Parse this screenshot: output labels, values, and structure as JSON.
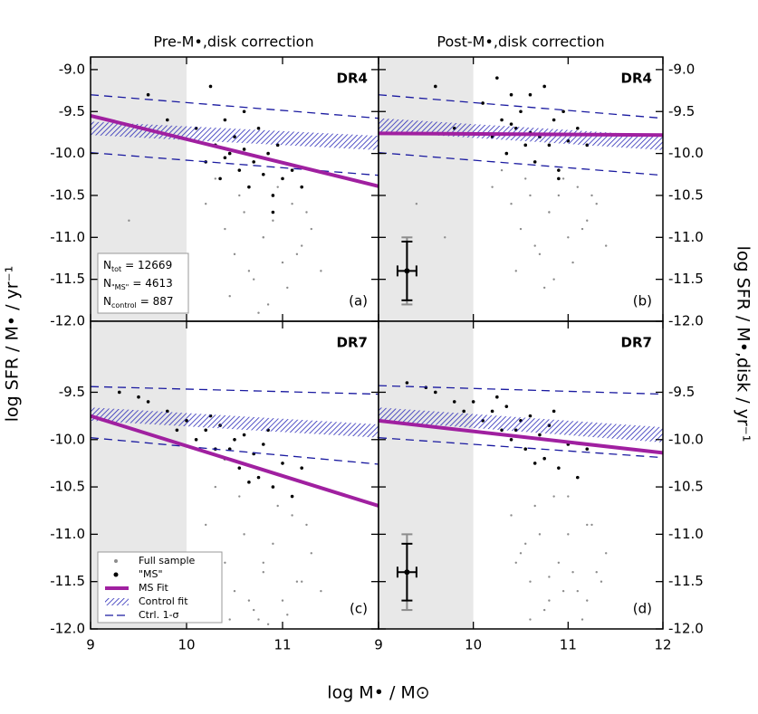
{
  "figure": {
    "column_titles": [
      "Pre-M•,disk correction",
      "Post-M•,disk correction"
    ],
    "x_label": "log M• / M⊙",
    "y_label": "log SFR / M• / yr⁻¹",
    "y2_label": "log SFR / M•,disk / yr⁻¹"
  },
  "chart_data": [
    {
      "type": "scatter",
      "panel_label": "(a)",
      "survey": "DR4",
      "xlim": [
        9,
        12
      ],
      "xticks": [
        9,
        10,
        11
      ],
      "ylim": [
        -12.0,
        -8.85
      ],
      "yticks": [
        {
          "value": -9.0,
          "label": "-9.0"
        },
        {
          "value": -9.5,
          "label": "-9.5"
        },
        {
          "value": -10.0,
          "label": "-10.0"
        },
        {
          "value": -10.5,
          "label": "-10.5"
        },
        {
          "value": -11.0,
          "label": "-11.0"
        },
        {
          "value": -11.5,
          "label": "-11.5"
        },
        {
          "value": -12.0,
          "label": "-12.0"
        }
      ],
      "y_tick_side": "left",
      "excluded_x": [
        9,
        10
      ],
      "series": [
        {
          "color": "#8c8c8c",
          "x": [
            10.2,
            10.4,
            10.5,
            10.6,
            10.7,
            10.8,
            10.9,
            11.0,
            11.1,
            11.2,
            11.3,
            10.45,
            10.65,
            10.85,
            11.05,
            11.25,
            10.55,
            10.75,
            10.95,
            11.15,
            9.4,
            9.7,
            10.3,
            11.4,
            10.8
          ],
          "y": [
            -10.6,
            -10.9,
            -11.2,
            -10.7,
            -11.5,
            -11.0,
            -10.8,
            -11.3,
            -10.6,
            -11.1,
            -10.9,
            -11.7,
            -11.4,
            -11.8,
            -11.6,
            -10.7,
            -10.5,
            -11.9,
            -10.4,
            -11.2,
            -10.8,
            -11.3,
            -10.3,
            -11.4,
            -11.0
          ]
        },
        {
          "color": "#000000",
          "x": [
            10.1,
            10.2,
            10.3,
            10.35,
            10.4,
            10.45,
            10.5,
            10.55,
            10.6,
            10.65,
            10.7,
            10.75,
            10.8,
            10.85,
            10.9,
            10.95,
            11.0,
            11.1,
            9.6,
            9.8,
            10.25,
            10.6,
            10.9,
            11.2,
            10.4
          ],
          "y": [
            -9.7,
            -10.1,
            -9.9,
            -10.3,
            -9.6,
            -10.0,
            -9.8,
            -10.2,
            -9.95,
            -10.4,
            -10.1,
            -9.7,
            -10.25,
            -10.0,
            -10.5,
            -9.9,
            -10.3,
            -10.2,
            -9.3,
            -9.6,
            -9.2,
            -9.5,
            -10.7,
            -10.4,
            -10.05
          ]
        }
      ],
      "control_fit": {
        "color": "#2a2ab8",
        "x": [
          9,
          12
        ],
        "upper": [
          -9.62,
          -9.79
        ],
        "lower": [
          -9.78,
          -9.96
        ]
      },
      "ctrl_sigma": {
        "color": "#1a1aa0",
        "x": [
          9,
          12
        ],
        "upper": [
          -9.3,
          -9.58
        ],
        "lower": [
          -9.99,
          -10.26
        ]
      },
      "ms_fit": {
        "color": "#a020a0",
        "x": [
          9,
          12
        ],
        "y": [
          -9.55,
          -10.39
        ]
      },
      "counts": [
        {
          "symbol": "N",
          "sub": "tot",
          "text": "= 12669",
          "color": "#8c8c8c"
        },
        {
          "symbol": "N",
          "sub": "\"MS\"",
          "text": "= 4613",
          "color": "#000000"
        },
        {
          "symbol": "N",
          "sub": "control",
          "text": "= 887",
          "color": "#1a1aa0"
        }
      ]
    },
    {
      "type": "scatter",
      "panel_label": "(b)",
      "survey": "DR4",
      "xlim": [
        9,
        12
      ],
      "xticks": [
        9,
        10,
        11,
        12
      ],
      "ylim": [
        -12.0,
        -8.85
      ],
      "yticks": [
        {
          "value": -9.0,
          "label": "-9.0"
        },
        {
          "value": -9.5,
          "label": "-9.5"
        },
        {
          "value": -10.0,
          "label": "-10.0"
        },
        {
          "value": -10.5,
          "label": "-10.5"
        },
        {
          "value": -11.0,
          "label": "-11.0"
        },
        {
          "value": -11.5,
          "label": "-11.5"
        },
        {
          "value": -12.0,
          "label": "-12.0"
        }
      ],
      "y_tick_side": "right",
      "excluded_x": [
        9,
        10
      ],
      "series": [
        {
          "color": "#8c8c8c",
          "x": [
            10.2,
            10.4,
            10.5,
            10.6,
            10.7,
            10.8,
            10.9,
            11.0,
            11.1,
            11.2,
            11.3,
            10.45,
            10.65,
            10.85,
            11.05,
            11.25,
            10.55,
            10.75,
            10.95,
            11.15,
            9.4,
            9.7,
            10.3,
            11.4,
            10.8
          ],
          "y": [
            -10.4,
            -10.6,
            -10.9,
            -10.5,
            -11.2,
            -10.7,
            -10.5,
            -11.0,
            -10.4,
            -10.8,
            -10.6,
            -11.4,
            -11.1,
            -11.5,
            -11.3,
            -10.5,
            -10.3,
            -11.6,
            -10.3,
            -10.9,
            -10.6,
            -11.0,
            -10.2,
            -11.1,
            -10.7
          ]
        },
        {
          "color": "#000000",
          "x": [
            10.1,
            10.2,
            10.3,
            10.35,
            10.4,
            10.45,
            10.5,
            10.55,
            10.6,
            10.65,
            10.7,
            10.75,
            10.8,
            10.85,
            10.9,
            10.95,
            11.0,
            11.1,
            9.6,
            9.8,
            10.25,
            10.6,
            10.9,
            11.2,
            10.4
          ],
          "y": [
            -9.4,
            -9.8,
            -9.6,
            -10.0,
            -9.3,
            -9.7,
            -9.5,
            -9.9,
            -9.75,
            -10.1,
            -9.8,
            -9.2,
            -9.9,
            -9.6,
            -10.2,
            -9.5,
            -9.85,
            -9.7,
            -9.2,
            -9.7,
            -9.1,
            -9.3,
            -10.3,
            -9.9,
            -9.65
          ]
        }
      ],
      "control_fit": {
        "color": "#2a2ab8",
        "x": [
          9,
          12
        ],
        "upper": [
          -9.58,
          -9.79
        ],
        "lower": [
          -9.74,
          -9.96
        ]
      },
      "ctrl_sigma": {
        "color": "#1a1aa0",
        "x": [
          9,
          12
        ],
        "upper": [
          -9.3,
          -9.58
        ],
        "lower": [
          -9.99,
          -10.26
        ]
      },
      "ms_fit": {
        "color": "#a020a0",
        "x": [
          9,
          12
        ],
        "y": [
          -9.76,
          -9.78
        ]
      },
      "error_bar": {
        "x": 9.3,
        "y": -11.4,
        "xerr": 0.1,
        "yerr": 0.35,
        "yerr_total": 0.4
      }
    },
    {
      "type": "scatter",
      "panel_label": "(c)",
      "survey": "DR7",
      "xlim": [
        9,
        12
      ],
      "xticks": [
        9,
        10,
        11
      ],
      "ylim": [
        -12.0,
        -8.75
      ],
      "yticks": [
        {
          "value": -9.5,
          "label": "-9.5"
        },
        {
          "value": -10.0,
          "label": "-10.0"
        },
        {
          "value": -10.5,
          "label": "-10.5"
        },
        {
          "value": -11.0,
          "label": "-11.0"
        },
        {
          "value": -11.5,
          "label": "-11.5"
        },
        {
          "value": -12.0,
          "label": "-12.0"
        }
      ],
      "y_tick_side": "left",
      "excluded_x": [
        9,
        10
      ],
      "legend": true,
      "series": [
        {
          "name": "Full sample",
          "color": "#8c8c8c",
          "x": [
            10.2,
            10.4,
            10.5,
            10.6,
            10.7,
            10.8,
            10.9,
            11.0,
            11.1,
            11.2,
            11.3,
            10.45,
            10.65,
            10.85,
            11.05,
            11.25,
            10.55,
            10.75,
            10.95,
            11.15,
            9.4,
            9.7,
            10.3,
            11.4,
            10.8
          ],
          "y": [
            -10.9,
            -11.3,
            -11.6,
            -11.0,
            -11.8,
            -11.4,
            -11.1,
            -11.7,
            -10.8,
            -11.5,
            -11.2,
            -11.9,
            -11.7,
            -11.95,
            -11.85,
            -10.9,
            -10.6,
            -11.9,
            -10.7,
            -11.5,
            -11.2,
            -11.6,
            -10.5,
            -11.6,
            -11.3
          ]
        },
        {
          "name": "\"MS\"",
          "color": "#000000",
          "x": [
            9.6,
            9.8,
            9.9,
            10.0,
            10.1,
            10.2,
            10.3,
            10.35,
            10.4,
            10.5,
            10.55,
            10.6,
            10.7,
            10.75,
            10.8,
            10.9,
            11.0,
            11.1,
            9.3,
            9.5,
            10.45,
            10.65,
            10.85,
            11.2,
            10.25
          ],
          "y": [
            -9.6,
            -9.7,
            -9.9,
            -9.8,
            -10.0,
            -9.9,
            -10.1,
            -9.85,
            -10.2,
            -10.0,
            -10.3,
            -9.95,
            -10.15,
            -10.4,
            -10.05,
            -10.5,
            -10.25,
            -10.6,
            -9.5,
            -9.55,
            -10.1,
            -10.45,
            -9.9,
            -10.3,
            -9.75
          ]
        }
      ],
      "control_fit": {
        "name": "Control fit",
        "color": "#2a2ab8",
        "x": [
          9,
          12
        ],
        "upper": [
          -9.66,
          -9.84
        ],
        "lower": [
          -9.8,
          -9.98
        ]
      },
      "ctrl_sigma": {
        "name": "Ctrl. 1-σ",
        "color": "#1a1aa0",
        "x": [
          9,
          12
        ],
        "upper": [
          -9.44,
          -9.52
        ],
        "lower": [
          -9.98,
          -10.26
        ]
      },
      "ms_fit": {
        "name": "MS Fit",
        "color": "#a020a0",
        "x": [
          9,
          12
        ],
        "y": [
          -9.75,
          -10.7
        ]
      }
    },
    {
      "type": "scatter",
      "panel_label": "(d)",
      "survey": "DR7",
      "xlim": [
        9,
        12
      ],
      "xticks": [
        9,
        10,
        11,
        12
      ],
      "ylim": [
        -12.0,
        -8.75
      ],
      "yticks": [
        {
          "value": -9.5,
          "label": "-9.5"
        },
        {
          "value": -10.0,
          "label": "-10.0"
        },
        {
          "value": -10.5,
          "label": "-10.5"
        },
        {
          "value": -11.0,
          "label": "-11.0"
        },
        {
          "value": -11.5,
          "label": "-11.5"
        },
        {
          "value": -12.0,
          "label": "-12.0"
        }
      ],
      "y_tick_side": "right",
      "excluded_x": [
        9,
        10
      ],
      "series": [
        {
          "color": "#8c8c8c",
          "x": [
            10.4,
            10.5,
            10.6,
            10.7,
            10.8,
            10.9,
            11.0,
            11.1,
            11.2,
            11.3,
            10.55,
            10.75,
            10.95,
            11.15,
            11.35,
            10.65,
            10.85,
            11.05,
            11.25,
            10.45,
            10.6,
            10.8,
            11.0,
            11.2,
            11.4
          ],
          "y": [
            -10.8,
            -11.2,
            -11.5,
            -11.0,
            -11.7,
            -11.3,
            -11.0,
            -11.6,
            -10.9,
            -11.4,
            -11.1,
            -11.8,
            -11.6,
            -11.9,
            -11.5,
            -10.7,
            -10.6,
            -11.4,
            -10.9,
            -11.3,
            -11.9,
            -11.45,
            -10.6,
            -11.7,
            -11.2
          ]
        },
        {
          "color": "#000000",
          "x": [
            9.6,
            9.8,
            9.9,
            10.0,
            10.1,
            10.2,
            10.3,
            10.35,
            10.4,
            10.5,
            10.55,
            10.6,
            10.7,
            10.75,
            10.8,
            10.9,
            11.0,
            11.1,
            9.3,
            9.5,
            10.45,
            10.65,
            10.85,
            11.2,
            10.25
          ],
          "y": [
            -9.5,
            -9.6,
            -9.7,
            -9.6,
            -9.8,
            -9.7,
            -9.9,
            -9.65,
            -10.0,
            -9.8,
            -10.1,
            -9.75,
            -9.95,
            -10.2,
            -9.85,
            -10.3,
            -10.05,
            -10.4,
            -9.4,
            -9.45,
            -9.9,
            -10.25,
            -9.7,
            -10.1,
            -9.55
          ]
        }
      ],
      "control_fit": {
        "color": "#2a2ab8",
        "x": [
          9,
          12
        ],
        "upper": [
          -9.66,
          -9.87
        ],
        "lower": [
          -9.8,
          -10.03
        ]
      },
      "ctrl_sigma": {
        "color": "#1a1aa0",
        "x": [
          9,
          12
        ],
        "upper": [
          -9.43,
          -9.52
        ],
        "lower": [
          -9.98,
          -10.19
        ]
      },
      "ms_fit": {
        "color": "#a020a0",
        "x": [
          9,
          12
        ],
        "y": [
          -9.8,
          -10.14
        ]
      },
      "error_bar": {
        "x": 9.3,
        "y": -11.4,
        "xerr": 0.1,
        "yerr": 0.3,
        "yerr_total": 0.4
      }
    }
  ]
}
